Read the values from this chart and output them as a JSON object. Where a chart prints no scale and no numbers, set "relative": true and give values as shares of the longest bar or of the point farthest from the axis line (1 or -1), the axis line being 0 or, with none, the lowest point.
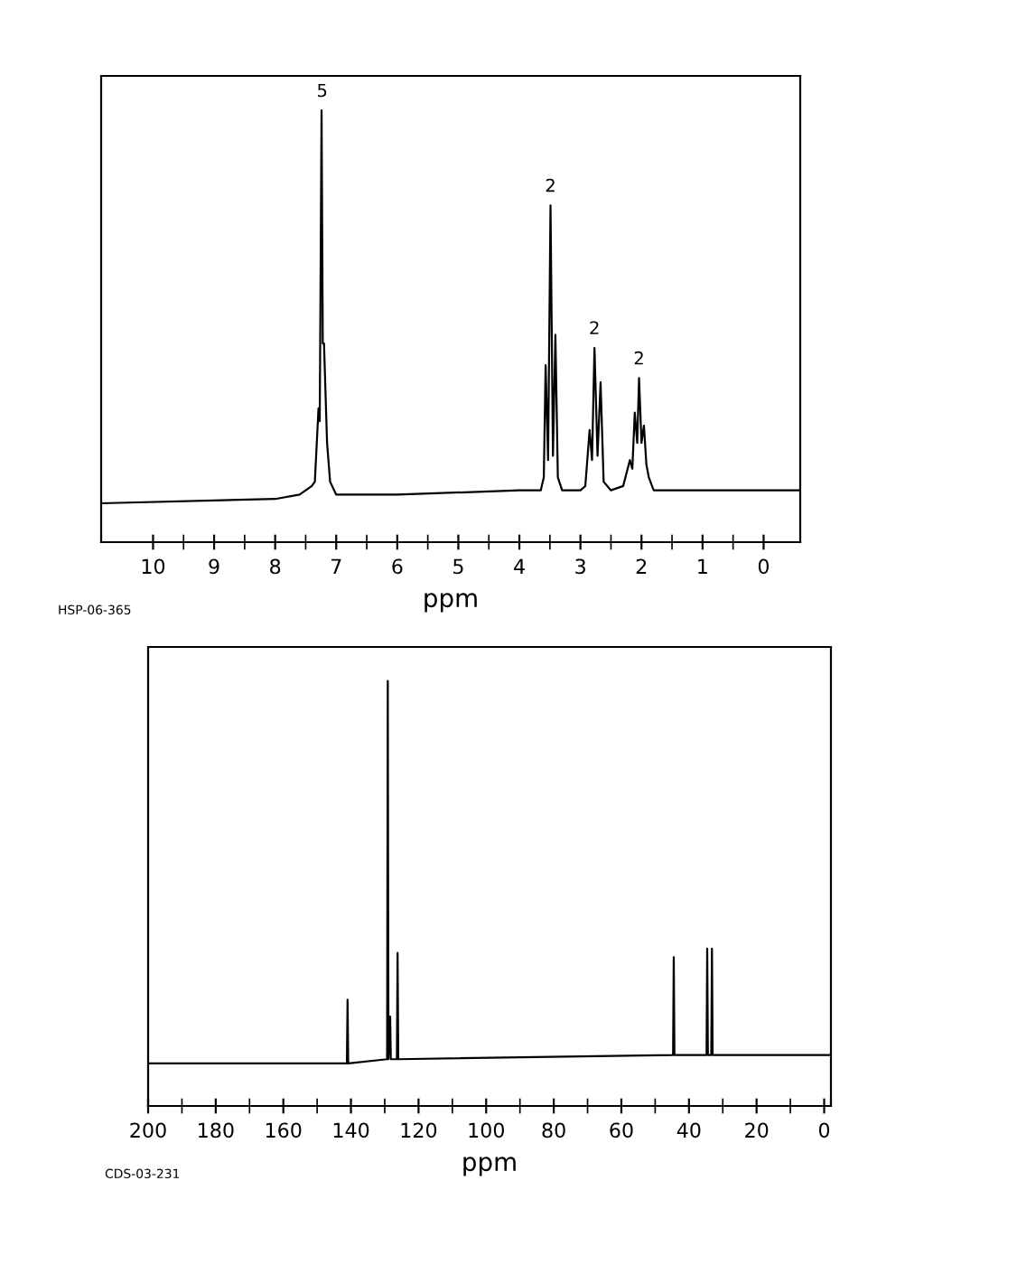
{
  "chart_data": [
    {
      "type": "line",
      "relative": true,
      "xlabel": "ppm",
      "xlim": [
        10.85,
        -0.6
      ],
      "tick_labels": "x",
      "grid": false,
      "legend": false,
      "xticks": [
        10,
        {
          "value": 9.5,
          "label": null
        },
        9,
        {
          "value": 8.5,
          "label": null
        },
        8,
        {
          "value": 7.5,
          "label": null
        },
        7,
        {
          "value": 6.5,
          "label": null
        },
        6,
        {
          "value": 5.5,
          "label": null
        },
        5,
        {
          "value": 4.5,
          "label": null
        },
        4,
        {
          "value": 3.5,
          "label": null
        },
        3,
        {
          "value": 2.5,
          "label": null
        },
        2,
        {
          "value": 1.5,
          "label": null
        },
        1,
        {
          "value": 0.5,
          "label": null
        },
        0
      ],
      "series": [
        {
          "color": "#000000",
          "x": [
            10.85,
            8,
            7.6,
            7.4,
            7.35,
            7.29,
            7.27,
            7.24,
            7.22,
            7.2,
            7.15,
            7.1,
            7.0,
            6.0,
            4.0,
            3.65,
            3.6,
            3.57,
            3.53,
            3.49,
            3.45,
            3.41,
            3.37,
            3.3,
            3.0,
            2.92,
            2.85,
            2.81,
            2.77,
            2.72,
            2.67,
            2.62,
            2.5,
            2.3,
            2.19,
            2.15,
            2.11,
            2.07,
            2.04,
            2.0,
            1.96,
            1.92,
            1.88,
            1.8,
            1.0,
            -0.6
          ],
          "values": [
            0.09,
            0.1,
            0.11,
            0.13,
            0.14,
            0.31,
            0.28,
            1.0,
            0.46,
            0.46,
            0.23,
            0.14,
            0.11,
            0.11,
            0.12,
            0.12,
            0.15,
            0.41,
            0.19,
            0.78,
            0.2,
            0.48,
            0.15,
            0.12,
            0.12,
            0.13,
            0.26,
            0.19,
            0.45,
            0.2,
            0.37,
            0.14,
            0.12,
            0.13,
            0.19,
            0.17,
            0.3,
            0.23,
            0.38,
            0.23,
            0.27,
            0.18,
            0.15,
            0.12,
            0.12,
            0.12
          ]
        }
      ],
      "annotations": [
        {
          "text": "5",
          "x": 7.23,
          "y": 1.0
        },
        {
          "text": "2",
          "x": 3.49,
          "y": 0.78
        },
        {
          "text": "2",
          "x": 2.77,
          "y": 0.45
        },
        {
          "text": "2",
          "x": 2.04,
          "y": 0.38
        },
        "HSP-06-365"
      ]
    },
    {
      "type": "line",
      "relative": true,
      "xlabel": "ppm",
      "xlim": [
        200,
        -2
      ],
      "tick_labels": "x",
      "grid": false,
      "legend": false,
      "xticks": [
        200,
        {
          "value": 190,
          "label": null
        },
        180,
        {
          "value": 170,
          "label": null
        },
        160,
        {
          "value": 150,
          "label": null
        },
        140,
        {
          "value": 130,
          "label": null
        },
        120,
        {
          "value": 110,
          "label": null
        },
        100,
        {
          "value": 90,
          "label": null
        },
        80,
        {
          "value": 70,
          "label": null
        },
        60,
        {
          "value": 50,
          "label": null
        },
        40,
        {
          "value": 30,
          "label": null
        },
        20,
        {
          "value": 10,
          "label": null
        },
        0
      ],
      "series": [
        {
          "color": "#000000",
          "x": [
            200,
            141.2,
            141.0,
            140.8,
            129.3,
            129.1,
            128.9,
            128.4,
            128.2,
            126.4,
            126.2,
            126.0,
            44.7,
            44.5,
            44.3,
            34.8,
            34.6,
            34.4,
            33.4,
            33.2,
            33.0,
            -2
          ],
          "values": [
            0.1,
            0.1,
            0.25,
            0.1,
            0.11,
            1.0,
            0.11,
            0.21,
            0.11,
            0.11,
            0.36,
            0.11,
            0.12,
            0.35,
            0.12,
            0.12,
            0.37,
            0.12,
            0.12,
            0.37,
            0.12,
            0.12
          ]
        }
      ],
      "annotations": [
        "CDS-03-231"
      ]
    }
  ]
}
